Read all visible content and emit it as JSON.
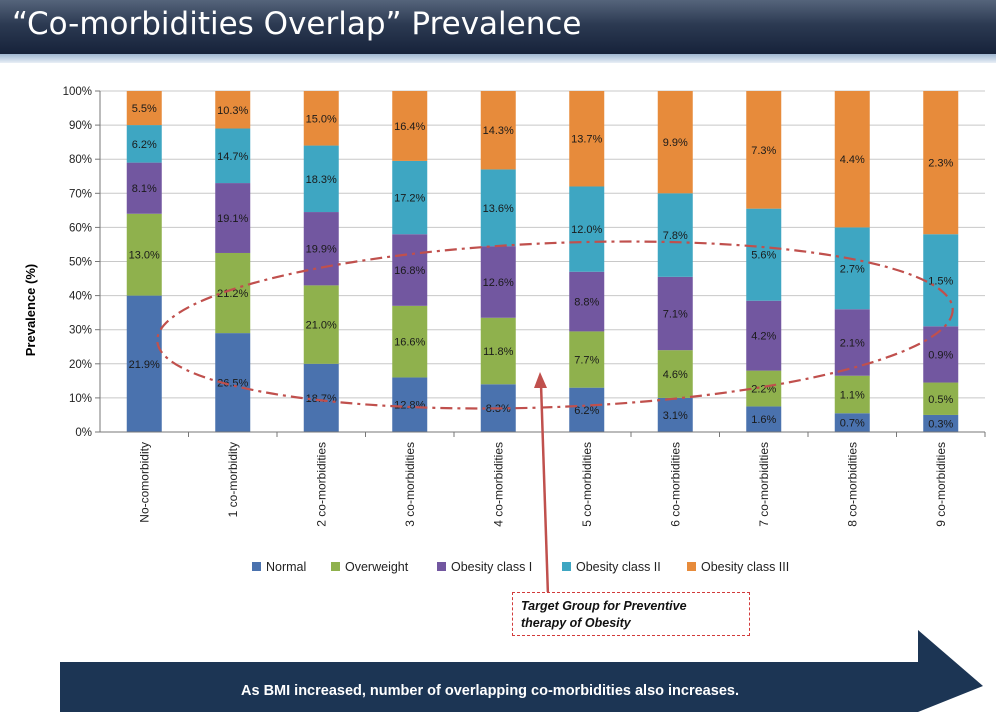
{
  "header": {
    "title": "“Co-morbidities Overlap” Prevalence"
  },
  "callout": {
    "line1": "Target Group for Preventive",
    "line2": "therapy of Obesity"
  },
  "banner": {
    "text": "As BMI increased, number of overlapping co-morbidities also increases."
  },
  "colors": {
    "Normal": "#4a72ae",
    "Overweight": "#8fb14d",
    "Obesity class I": "#7257a0",
    "Obesity class II": "#3ea6c2",
    "Obesity class III": "#e78b3b",
    "annotation": "#c0504d",
    "banner": "#1c3554"
  },
  "chart_data": {
    "type": "bar",
    "stacked": true,
    "percent": true,
    "ylabel": "Prevalence (%)",
    "ylim": [
      0,
      100
    ],
    "yticks": [
      "0%",
      "10%",
      "20%",
      "30%",
      "40%",
      "50%",
      "60%",
      "70%",
      "80%",
      "90%",
      "100%"
    ],
    "categories": [
      "No-comorbidity",
      "1 co-morbidity",
      "2 co-morbidities",
      "3 co-morbidities",
      "4 co-morbidities",
      "5 co-morbidities",
      "6 co-morbidities",
      "7 co-morbidities",
      "8 co-morbidities",
      "9 co-morbidities"
    ],
    "series": [
      {
        "name": "Normal",
        "values": [
          40.0,
          29.0,
          20.0,
          16.0,
          14.0,
          13.0,
          10.0,
          7.5,
          5.5,
          5.0
        ],
        "labels": [
          "21.9%",
          "26.5%",
          "18.7%",
          "12.8%",
          "8.3%",
          "6.2%",
          "3.1%",
          "1.6%",
          "0.7%",
          "0.3%"
        ]
      },
      {
        "name": "Overweight",
        "values": [
          24.0,
          23.5,
          23.0,
          21.0,
          19.5,
          16.5,
          14.0,
          10.5,
          11.0,
          9.5
        ],
        "labels": [
          "13.0%",
          "21.2%",
          "21.0%",
          "16.6%",
          "11.8%",
          "7.7%",
          "4.6%",
          "2.2%",
          "1.1%",
          "0.5%"
        ]
      },
      {
        "name": "Obesity class I",
        "values": [
          15.0,
          20.5,
          21.5,
          21.0,
          21.0,
          17.5,
          21.5,
          20.5,
          19.5,
          16.5
        ],
        "labels": [
          "8.1%",
          "19.1%",
          "19.9%",
          "16.8%",
          "12.6%",
          "8.8%",
          "7.1%",
          "4.2%",
          "2.1%",
          "0.9%"
        ]
      },
      {
        "name": "Obesity class II",
        "values": [
          11.0,
          16.0,
          19.5,
          21.5,
          22.5,
          25.0,
          24.5,
          27.0,
          24.0,
          27.0
        ],
        "labels": [
          "6.2%",
          "14.7%",
          "18.3%",
          "17.2%",
          "13.6%",
          "12.0%",
          "7.8%",
          "5.6%",
          "2.7%",
          "1.5%"
        ]
      },
      {
        "name": "Obesity class III",
        "values": [
          10.0,
          11.0,
          16.0,
          20.5,
          23.0,
          28.0,
          30.0,
          34.5,
          40.0,
          42.0
        ],
        "labels": [
          "5.5%",
          "10.3%",
          "15.0%",
          "16.4%",
          "14.3%",
          "13.7%",
          "9.9%",
          "7.3%",
          "4.4%",
          "2.3%"
        ]
      }
    ],
    "legend_position": "bottom"
  }
}
